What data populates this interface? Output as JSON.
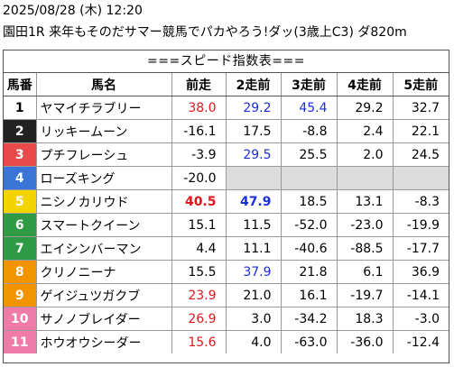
{
  "header": {
    "datetime": "2025/08/28 (木) 12:20",
    "race": "園田1R 来年もそのだサマー競馬でパカやろう!ダッ(3歳上C3) ダ820m"
  },
  "subtitle": "===スピード指数表===",
  "columns": [
    "馬番",
    "馬名",
    "前走",
    "2走前",
    "3走前",
    "4走前",
    "5走前"
  ],
  "gate_colors": [
    "#ffffff",
    "#222222",
    "#e84a4a",
    "#3a74d6",
    "#f2d400",
    "#2e9b44",
    "#f29400",
    "#f07aa8"
  ],
  "rows": [
    {
      "num": "1",
      "gate": 0,
      "name": "ヤマイチラブリー",
      "vals": [
        {
          "v": "38.0",
          "c": "red"
        },
        {
          "v": "29.2",
          "c": "blue"
        },
        {
          "v": "45.4",
          "c": "blue"
        },
        {
          "v": "29.2",
          "c": ""
        },
        {
          "v": "32.7",
          "c": ""
        }
      ]
    },
    {
      "num": "2",
      "gate": 1,
      "name": "リッキームーン",
      "vals": [
        {
          "v": "-16.1",
          "c": ""
        },
        {
          "v": "17.5",
          "c": ""
        },
        {
          "v": "-8.8",
          "c": ""
        },
        {
          "v": "2.4",
          "c": ""
        },
        {
          "v": "22.1",
          "c": ""
        }
      ]
    },
    {
      "num": "3",
      "gate": 2,
      "name": "プチフレーシュ",
      "vals": [
        {
          "v": "-3.9",
          "c": ""
        },
        {
          "v": "29.5",
          "c": "blue"
        },
        {
          "v": "25.5",
          "c": ""
        },
        {
          "v": "2.0",
          "c": ""
        },
        {
          "v": "24.5",
          "c": ""
        }
      ]
    },
    {
      "num": "4",
      "gate": 3,
      "name": "ローズキング",
      "vals": [
        {
          "v": "-20.0",
          "c": ""
        },
        {
          "v": "",
          "c": "empty"
        },
        {
          "v": "",
          "c": "empty"
        },
        {
          "v": "",
          "c": "empty"
        },
        {
          "v": "",
          "c": "empty"
        }
      ]
    },
    {
      "num": "5",
      "gate": 4,
      "name": "ニシノカリウド",
      "vals": [
        {
          "v": "40.5",
          "c": "red bold"
        },
        {
          "v": "47.9",
          "c": "blue bold"
        },
        {
          "v": "18.5",
          "c": ""
        },
        {
          "v": "13.1",
          "c": ""
        },
        {
          "v": "-8.3",
          "c": ""
        }
      ]
    },
    {
      "num": "6",
      "gate": 5,
      "name": "スマートクイーン",
      "vals": [
        {
          "v": "15.1",
          "c": ""
        },
        {
          "v": "11.5",
          "c": ""
        },
        {
          "v": "-52.0",
          "c": ""
        },
        {
          "v": "-23.0",
          "c": ""
        },
        {
          "v": "-19.9",
          "c": ""
        }
      ]
    },
    {
      "num": "7",
      "gate": 5,
      "name": "エイシンバーマン",
      "vals": [
        {
          "v": "4.4",
          "c": ""
        },
        {
          "v": "11.1",
          "c": ""
        },
        {
          "v": "-40.6",
          "c": ""
        },
        {
          "v": "-88.5",
          "c": ""
        },
        {
          "v": "-17.7",
          "c": ""
        }
      ]
    },
    {
      "num": "8",
      "gate": 6,
      "name": "クリノニーナ",
      "vals": [
        {
          "v": "15.5",
          "c": ""
        },
        {
          "v": "37.9",
          "c": "blue"
        },
        {
          "v": "21.8",
          "c": ""
        },
        {
          "v": "6.1",
          "c": ""
        },
        {
          "v": "36.9",
          "c": ""
        }
      ]
    },
    {
      "num": "9",
      "gate": 6,
      "name": "ゲイジュツガクブ",
      "vals": [
        {
          "v": "23.9",
          "c": "red"
        },
        {
          "v": "21.0",
          "c": ""
        },
        {
          "v": "16.1",
          "c": ""
        },
        {
          "v": "-19.7",
          "c": ""
        },
        {
          "v": "-14.1",
          "c": ""
        }
      ]
    },
    {
      "num": "10",
      "gate": 7,
      "name": "サノノブレイダー",
      "vals": [
        {
          "v": "26.9",
          "c": "red"
        },
        {
          "v": "3.0",
          "c": ""
        },
        {
          "v": "-34.2",
          "c": ""
        },
        {
          "v": "18.3",
          "c": ""
        },
        {
          "v": "-3.0",
          "c": ""
        }
      ]
    },
    {
      "num": "11",
      "gate": 7,
      "name": "ホウオウシーダー",
      "vals": [
        {
          "v": "15.6",
          "c": "red"
        },
        {
          "v": "4.0",
          "c": ""
        },
        {
          "v": "-63.0",
          "c": ""
        },
        {
          "v": "-36.0",
          "c": ""
        },
        {
          "v": "-12.4",
          "c": ""
        }
      ]
    }
  ]
}
